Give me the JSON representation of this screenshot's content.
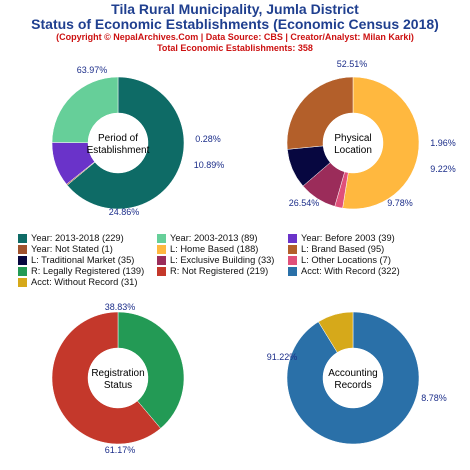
{
  "header": {
    "title_line1": "Tila Rural Municipality, Jumla District",
    "title_line2": "Status of Economic Establishments (Economic Census 2018)",
    "copyright": "(Copyright © NepalArchives.Com | Data Source: CBS | Creator/Analyst: Milan Karki)",
    "total": "Total Economic Establishments: 358"
  },
  "chart_data": [
    {
      "type": "pie",
      "center_label": [
        "Period of",
        "Establishment"
      ],
      "slices": [
        {
          "label": "Year: 2013-2018",
          "value": 229,
          "percent_label": "63.97%",
          "color": "#0e6b66"
        },
        {
          "label": "Year: Not Stated",
          "value": 1,
          "percent_label": "0.28%",
          "color": "#a0522d"
        },
        {
          "label": "Year: Before 2003",
          "value": 39,
          "percent_label": "10.89%",
          "color": "#6a33c9"
        },
        {
          "label": "Year: 2003-2013",
          "value": 89,
          "percent_label": "24.86%",
          "color": "#66cf99"
        }
      ]
    },
    {
      "type": "pie",
      "center_label": [
        "Physical",
        "Location"
      ],
      "slices": [
        {
          "label": "L: Home Based",
          "value": 188,
          "percent_label": "52.51%",
          "color": "#ffb83f"
        },
        {
          "label": "L: Other Locations",
          "value": 7,
          "percent_label": "1.96%",
          "color": "#e0507a"
        },
        {
          "label": "L: Exclusive Building",
          "value": 33,
          "percent_label": "9.22%",
          "color": "#9b2c5a"
        },
        {
          "label": "L: Traditional Market",
          "value": 35,
          "percent_label": "9.78%",
          "color": "#070740"
        },
        {
          "label": "L: Brand Based",
          "value": 95,
          "percent_label": "26.54%",
          "color": "#b35f2a"
        }
      ]
    },
    {
      "type": "pie",
      "center_label": [
        "Registration",
        "Status"
      ],
      "slices": [
        {
          "label": "R: Legally Registered",
          "value": 139,
          "percent_label": "38.83%",
          "color": "#239a55"
        },
        {
          "label": "R: Not Registered",
          "value": 219,
          "percent_label": "61.17%",
          "color": "#c4382b"
        }
      ]
    },
    {
      "type": "pie",
      "center_label": [
        "Accounting",
        "Records"
      ],
      "slices": [
        {
          "label": "Acct: With Record",
          "value": 322,
          "percent_label": "91.22%",
          "color": "#2a70a8"
        },
        {
          "label": "Acct: Without Record",
          "value": 31,
          "percent_label": "8.78%",
          "color": "#d6a91a"
        }
      ]
    }
  ],
  "legend": [
    {
      "text": "Year: 2013-2018 (229)",
      "color": "#0e6b66"
    },
    {
      "text": "Year: 2003-2013 (89)",
      "color": "#66cf99"
    },
    {
      "text": "Year: Before 2003 (39)",
      "color": "#6a33c9"
    },
    {
      "text": "Year: Not Stated (1)",
      "color": "#a0522d"
    },
    {
      "text": "L: Home Based (188)",
      "color": "#ffb83f"
    },
    {
      "text": "L: Brand Based (95)",
      "color": "#b35f2a"
    },
    {
      "text": "L: Traditional Market (35)",
      "color": "#070740"
    },
    {
      "text": "L: Exclusive Building (33)",
      "color": "#9b2c5a"
    },
    {
      "text": "L: Other Locations (7)",
      "color": "#e0507a"
    },
    {
      "text": "R: Legally Registered (139)",
      "color": "#239a55"
    },
    {
      "text": "R: Not Registered (219)",
      "color": "#c4382b"
    },
    {
      "text": "Acct: With Record (322)",
      "color": "#2a70a8"
    },
    {
      "text": "Acct: Without Record (31)",
      "color": "#d6a91a"
    }
  ]
}
